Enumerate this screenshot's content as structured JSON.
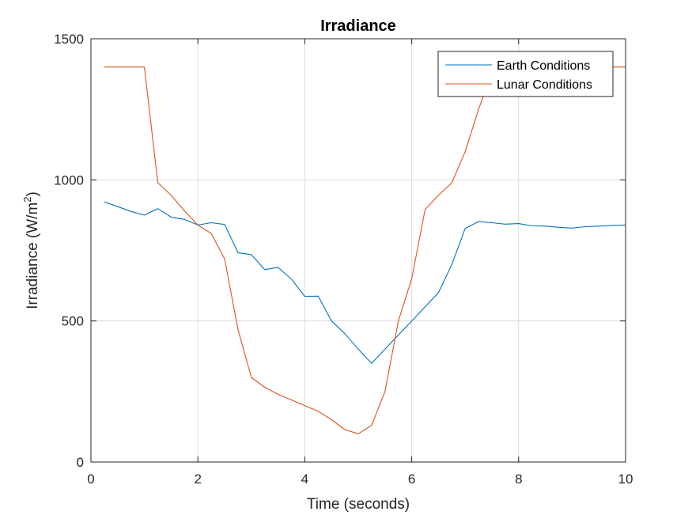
{
  "chart_data": {
    "type": "line",
    "title": "Irradiance",
    "xlabel": "Time (seconds)",
    "ylabel_main": "Irradiance (W/m",
    "ylabel_sup": "2",
    "ylabel_tail": ")",
    "xlim": [
      0,
      10
    ],
    "ylim": [
      0,
      1500
    ],
    "xticks": [
      0,
      2,
      4,
      6,
      8,
      10
    ],
    "xtick_labels": [
      "0",
      "2",
      "4",
      "6",
      "8",
      "10"
    ],
    "yticks": [
      0,
      500,
      1000,
      1500
    ],
    "ytick_labels": [
      "0",
      "500",
      "1000",
      "1500"
    ],
    "grid": true,
    "legend_position": "top-right",
    "series": [
      {
        "name": "Earth Conditions",
        "color": "#0072BD",
        "x": [
          0.25,
          0.5,
          0.75,
          1.0,
          1.25,
          1.5,
          1.75,
          2.0,
          2.25,
          2.5,
          2.75,
          3.0,
          3.25,
          3.5,
          3.75,
          4.0,
          4.25,
          4.5,
          4.75,
          5.0,
          5.25,
          5.5,
          5.75,
          6.0,
          6.25,
          6.5,
          6.75,
          7.0,
          7.25,
          7.5,
          7.75,
          8.0,
          8.25,
          8.5,
          8.75,
          9.0,
          9.25,
          9.5,
          9.75,
          10.0
        ],
        "y": [
          922,
          905,
          888,
          875,
          898,
          868,
          860,
          840,
          848,
          842,
          742,
          735,
          682,
          690,
          648,
          587,
          588,
          500,
          455,
          400,
          350,
          400,
          450,
          500,
          550,
          600,
          700,
          828,
          852,
          848,
          843,
          845,
          837,
          836,
          832,
          829,
          834,
          836,
          838,
          840
        ]
      },
      {
        "name": "Lunar Conditions",
        "color": "#D95319",
        "x": [
          0.25,
          0.5,
          0.75,
          1.0,
          1.25,
          1.5,
          1.75,
          2.0,
          2.25,
          2.5,
          2.75,
          3.0,
          3.25,
          3.5,
          3.75,
          4.0,
          4.25,
          4.5,
          4.75,
          5.0,
          5.25,
          5.5,
          5.75,
          6.0,
          6.25,
          6.5,
          6.75,
          7.0,
          7.25,
          7.5,
          7.75,
          8.0,
          8.25,
          8.5,
          8.75,
          9.0,
          9.25,
          9.5,
          9.75,
          10.0
        ],
        "y": [
          1400,
          1400,
          1400,
          1400,
          990,
          945,
          890,
          840,
          810,
          720,
          470,
          300,
          265,
          240,
          220,
          200,
          180,
          150,
          115,
          100,
          130,
          250,
          500,
          650,
          895,
          945,
          990,
          1100,
          1250,
          1380,
          1400,
          1400,
          1400,
          1400,
          1400,
          1400,
          1400,
          1400,
          1400,
          1400
        ]
      }
    ]
  }
}
